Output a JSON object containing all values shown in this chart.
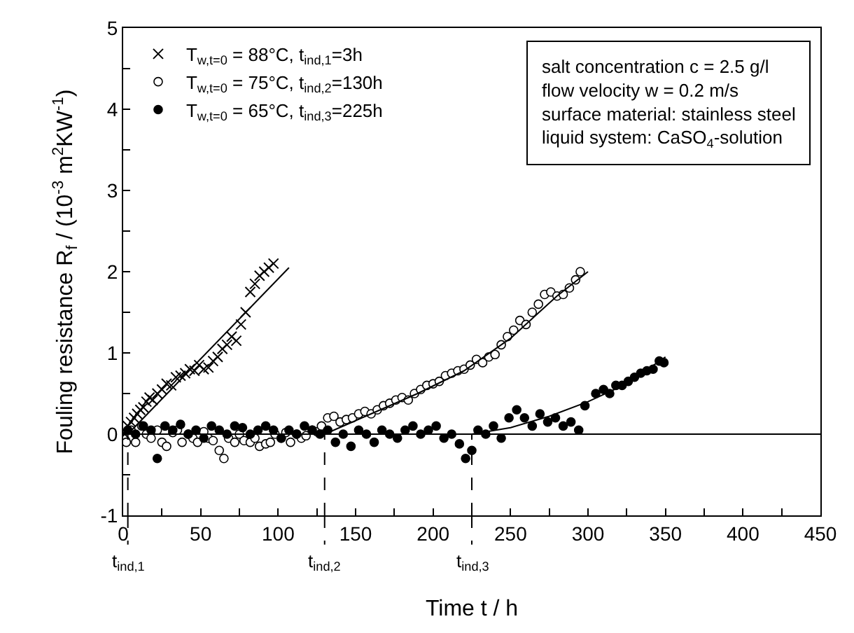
{
  "chart_data": {
    "type": "scatter",
    "xlabel": "Time t / h",
    "ylabel": "Fouling resistance R$_{f}$ / (10$^{-3}$ m$^{2}$KW$^{-1}$)",
    "series": [
      {
        "name": "T$_{w,t=0}$ = 88°C, t$_{ind,1}$=3h",
        "color": "#000000",
        "marker": "cross",
        "x": [
          1,
          3,
          5,
          7,
          9,
          11,
          13,
          15,
          17,
          19,
          22,
          25,
          28,
          31,
          34,
          37,
          40,
          43,
          46,
          49,
          52,
          55,
          58,
          61,
          64,
          67,
          70,
          73,
          76,
          79,
          82,
          85,
          88,
          91,
          94,
          97
        ],
        "values": [
          0.0,
          0.1,
          0.15,
          0.2,
          0.25,
          0.3,
          0.33,
          0.4,
          0.45,
          0.42,
          0.5,
          0.55,
          0.62,
          0.6,
          0.7,
          0.72,
          0.75,
          0.8,
          0.78,
          0.85,
          0.8,
          0.82,
          0.9,
          0.95,
          1.05,
          1.1,
          1.2,
          1.15,
          1.35,
          1.5,
          1.75,
          1.85,
          1.95,
          2.0,
          2.05,
          2.1
        ]
      },
      {
        "name": "T$_{w,t=0}$ = 75°C, t$_{ind,2}$=130h",
        "color": "#ffffff",
        "marker": "circle",
        "x": [
          2,
          5,
          8,
          12,
          15,
          18,
          22,
          25,
          28,
          32,
          35,
          38,
          42,
          45,
          48,
          52,
          55,
          58,
          62,
          65,
          68,
          72,
          75,
          78,
          82,
          85,
          88,
          92,
          95,
          98,
          102,
          105,
          108,
          112,
          115,
          118,
          122,
          125,
          128,
          132,
          136,
          140,
          144,
          148,
          152,
          156,
          160,
          164,
          168,
          172,
          176,
          180,
          184,
          188,
          192,
          196,
          200,
          204,
          208,
          212,
          216,
          220,
          224,
          228,
          232,
          236,
          240,
          244,
          248,
          252,
          256,
          260,
          264,
          268,
          272,
          276,
          280,
          284,
          288,
          292,
          295
        ],
        "values": [
          -0.1,
          0.05,
          -0.1,
          0.1,
          0,
          -0.05,
          0.05,
          -0.1,
          -0.15,
          0.02,
          0.05,
          -0.1,
          0,
          -0.05,
          -0.1,
          0.03,
          -0.05,
          -0.08,
          -0.2,
          -0.3,
          -0.05,
          -0.1,
          0,
          -0.08,
          -0.1,
          -0.05,
          -0.15,
          -0.12,
          -0.1,
          0.0,
          -0.05,
          0.02,
          -0.1,
          0,
          -0.05,
          -0.02,
          0.05,
          0.03,
          0.1,
          0.2,
          0.22,
          0.15,
          0.18,
          0.2,
          0.25,
          0.28,
          0.25,
          0.3,
          0.35,
          0.38,
          0.42,
          0.45,
          0.42,
          0.5,
          0.55,
          0.6,
          0.62,
          0.65,
          0.72,
          0.75,
          0.78,
          0.8,
          0.85,
          0.92,
          0.88,
          0.95,
          0.98,
          1.1,
          1.2,
          1.28,
          1.4,
          1.35,
          1.5,
          1.6,
          1.72,
          1.75,
          1.7,
          1.72,
          1.8,
          1.9,
          2.0
        ]
      },
      {
        "name": "T$_{w,t=0}$ = 65°C, t$_{ind,3}$=225h",
        "color": "#000000",
        "marker": "circle",
        "x": [
          3,
          8,
          13,
          18,
          22,
          27,
          32,
          37,
          42,
          47,
          52,
          57,
          62,
          67,
          72,
          77,
          82,
          87,
          92,
          97,
          102,
          107,
          112,
          117,
          122,
          127,
          132,
          137,
          142,
          147,
          152,
          157,
          162,
          167,
          172,
          177,
          182,
          187,
          192,
          197,
          202,
          207,
          212,
          217,
          221,
          225,
          229,
          234,
          239,
          244,
          249,
          254,
          259,
          264,
          269,
          274,
          279,
          284,
          289,
          294,
          298,
          305,
          310,
          314,
          318,
          322,
          326,
          330,
          334,
          338,
          342,
          346,
          349
        ],
        "values": [
          0.05,
          0.0,
          0.1,
          0.05,
          -0.3,
          0.1,
          0.05,
          0.12,
          0.0,
          0.05,
          -0.05,
          0.1,
          0.05,
          0.0,
          0.1,
          0.08,
          0.0,
          0.05,
          0.1,
          0.05,
          -0.05,
          0.05,
          0.0,
          0.1,
          0.05,
          0.0,
          0.05,
          -0.1,
          0.0,
          -0.15,
          0.05,
          0.0,
          -0.1,
          0.05,
          0.0,
          -0.05,
          0.05,
          0.1,
          0.0,
          0.05,
          0.1,
          -0.05,
          0.0,
          -0.12,
          -0.3,
          -0.2,
          0.05,
          0.0,
          0.1,
          -0.05,
          0.2,
          0.3,
          0.2,
          0.1,
          0.25,
          0.15,
          0.2,
          0.1,
          0.15,
          0.05,
          0.35,
          0.5,
          0.55,
          0.5,
          0.6,
          0.6,
          0.65,
          0.7,
          0.75,
          0.78,
          0.8,
          0.9,
          0.88
        ]
      },
      {
        "type": "line",
        "color": "#000000",
        "marker": "none",
        "x": [
          3,
          107
        ],
        "values": [
          0.0,
          2.05
        ]
      },
      {
        "type": "line",
        "color": "#000000",
        "marker": "none",
        "x": [
          130,
          160,
          190,
          220,
          250,
          280,
          300
        ],
        "values": [
          0.0,
          0.25,
          0.5,
          0.78,
          1.18,
          1.7,
          2.0
        ]
      },
      {
        "type": "line",
        "color": "#000000",
        "marker": "none",
        "x": [
          225,
          250,
          275,
          300,
          325,
          350
        ],
        "values": [
          0.0,
          0.08,
          0.22,
          0.4,
          0.62,
          0.95
        ]
      }
    ],
    "xlim": [
      0,
      450
    ],
    "xticks": [
      0,
      {
        "value": 25,
        "label": null
      },
      50,
      {
        "value": 75,
        "label": null
      },
      100,
      {
        "value": 125,
        "label": null
      },
      150,
      {
        "value": 175,
        "label": null
      },
      200,
      {
        "value": 225,
        "label": null
      },
      250,
      {
        "value": 275,
        "label": null
      },
      300,
      {
        "value": 325,
        "label": null
      },
      350,
      {
        "value": 375,
        "label": null
      },
      400,
      {
        "value": 425,
        "label": null
      },
      450
    ],
    "ylim": [
      -1,
      5
    ],
    "yticks": [
      -1,
      {
        "value": -0.5,
        "label": null
      },
      0,
      {
        "value": 0.5,
        "label": null
      },
      1,
      {
        "value": 1.5,
        "label": null
      },
      2,
      {
        "value": 2.5,
        "label": null
      },
      3,
      {
        "value": 3.5,
        "label": null
      },
      4,
      {
        "value": 4.5,
        "label": null
      },
      5
    ],
    "ref_lines": [
      {
        "axis": "y",
        "value": 0,
        "color": "#000000",
        "line_style": "solid"
      },
      {
        "axis": "x",
        "value": 3,
        "label": "t$_{ind,1}$",
        "color": "#000000",
        "line_style": "dashed"
      },
      {
        "axis": "x",
        "value": 130,
        "label": "t$_{ind,2}$",
        "color": "#000000",
        "line_style": "dashed"
      },
      {
        "axis": "x",
        "value": 225,
        "label": "t$_{ind,3}$",
        "color": "#000000",
        "line_style": "dashed"
      }
    ],
    "annotations": [
      "salt concentration c = 2.5 g/l",
      "flow velocity w = 0.2 m/s",
      "surface material: stainless steel",
      "liquid system: CaSO$_{4}$-solution"
    ],
    "legend": "top left"
  }
}
